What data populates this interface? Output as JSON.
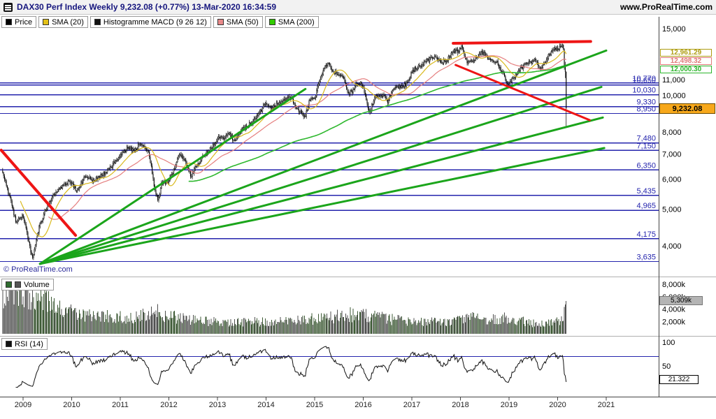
{
  "titlebar": {
    "title": "DAX30 Perf Index Weekly 9,232.08 (+0.77%) 13-Mar-2020 16:34:59",
    "website": "www.ProRealTime.com"
  },
  "legend": [
    {
      "label": "Price",
      "swatch": "#000000"
    },
    {
      "label": "SMA (20)",
      "swatch": "#e3c117"
    },
    {
      "label": "Histogramme MACD (9 26 12)",
      "swatch": "#111111"
    },
    {
      "label": "SMA (50)",
      "swatch": "#e88a8a"
    },
    {
      "label": "SMA (200)",
      "swatch": "#33cc00"
    }
  ],
  "panels": {
    "volume_label": "Volume",
    "volume_swatches": [
      "#2e6b2e",
      "#555555"
    ],
    "rsi_label": "RSI (14)",
    "rsi_swatch": "#111111"
  },
  "watermark": "© ProRealTime.com",
  "colors": {
    "level_line": "#2424ad",
    "up_trend": "#1ba51b",
    "down_trend": "#ee1515",
    "sma20": "#d9b91c",
    "sma50": "#e57f7f",
    "sma200": "#2eb82e",
    "vol_up": "#3d5a35",
    "vol_down": "#4f4f4f",
    "rsi_line": "#111111",
    "price_box_bg": "#f7a81b",
    "vol_box_bg": "#b4b4b4"
  },
  "chart_data": [
    {
      "type": "candlestick",
      "title": "DAX30 Perf Index Weekly",
      "y_scale": "log",
      "x_range": [
        2008.58,
        2021.35
      ],
      "x_tick_labels": [
        "2009",
        "2010",
        "2011",
        "2012",
        "2013",
        "2014",
        "2015",
        "2016",
        "2017",
        "2018",
        "2019",
        "2020",
        "2021"
      ],
      "y_axis_labels": [
        {
          "v": 15000,
          "label": "15,000"
        },
        {
          "v": 11000,
          "label": "11,000"
        },
        {
          "v": 10000,
          "label": "10,000"
        },
        {
          "v": 8000,
          "label": "8,000"
        },
        {
          "v": 7000,
          "label": "7,000"
        },
        {
          "v": 6000,
          "label": "6,000"
        },
        {
          "v": 5000,
          "label": "5,000"
        },
        {
          "v": 4000,
          "label": "4,000"
        }
      ],
      "horizontal_levels": [
        {
          "v": 10770,
          "label": "10,770"
        },
        {
          "v": 10650,
          "label": "10,650"
        },
        {
          "v": 10030,
          "label": "10,030"
        },
        {
          "v": 9330,
          "label": "9,330"
        },
        {
          "v": 8950,
          "label": "8,950"
        },
        {
          "v": 7480,
          "label": "7,480"
        },
        {
          "v": 7150,
          "label": "7,150"
        },
        {
          "v": 6350,
          "label": "6,350"
        },
        {
          "v": 5435,
          "label": "5,435"
        },
        {
          "v": 4965,
          "label": "4,965"
        },
        {
          "v": 4175,
          "label": "4,175"
        },
        {
          "v": 3635,
          "label": "3,635"
        }
      ],
      "last_price": 9232.08,
      "last_price_label": "9,232.08",
      "indicator_values": [
        {
          "name": "SMA (20)",
          "value": 12961.29,
          "label": "12,961.29",
          "color": "#ad9c10"
        },
        {
          "name": "SMA (50)",
          "value": 12498.32,
          "label": "12,498.32",
          "color": "#e07a7a"
        },
        {
          "name": "SMA (200)",
          "value": 12000.3,
          "label": "12,000.30",
          "color": "#2db52d"
        }
      ],
      "close_anchors": [
        [
          2008.58,
          6300
        ],
        [
          2008.72,
          5400
        ],
        [
          2008.85,
          4650
        ],
        [
          2009.0,
          4810
        ],
        [
          2009.08,
          4350
        ],
        [
          2009.19,
          3670
        ],
        [
          2009.3,
          4350
        ],
        [
          2009.45,
          4950
        ],
        [
          2009.6,
          5350
        ],
        [
          2009.75,
          5650
        ],
        [
          2009.95,
          5950
        ],
        [
          2010.1,
          5600
        ],
        [
          2010.3,
          6150
        ],
        [
          2010.42,
          5950
        ],
        [
          2010.55,
          6050
        ],
        [
          2010.7,
          6250
        ],
        [
          2010.9,
          6700
        ],
        [
          2011.05,
          7050
        ],
        [
          2011.17,
          7300
        ],
        [
          2011.3,
          7150
        ],
        [
          2011.4,
          7450
        ],
        [
          2011.5,
          7350
        ],
        [
          2011.58,
          7150
        ],
        [
          2011.65,
          6300
        ],
        [
          2011.72,
          5550
        ],
        [
          2011.78,
          5250
        ],
        [
          2011.85,
          5850
        ],
        [
          2011.95,
          5900
        ],
        [
          2012.05,
          6100
        ],
        [
          2012.2,
          6950
        ],
        [
          2012.3,
          6850
        ],
        [
          2012.45,
          6100
        ],
        [
          2012.6,
          6600
        ],
        [
          2012.75,
          7000
        ],
        [
          2012.9,
          7300
        ],
        [
          2013.0,
          7700
        ],
        [
          2013.12,
          7750
        ],
        [
          2013.25,
          7900
        ],
        [
          2013.35,
          7550
        ],
        [
          2013.5,
          8100
        ],
        [
          2013.65,
          8350
        ],
        [
          2013.8,
          8750
        ],
        [
          2014.0,
          9550
        ],
        [
          2014.1,
          9200
        ],
        [
          2014.25,
          9550
        ],
        [
          2014.35,
          9650
        ],
        [
          2014.5,
          9950
        ],
        [
          2014.62,
          9200
        ],
        [
          2014.72,
          9000
        ],
        [
          2014.79,
          8700
        ],
        [
          2014.9,
          9700
        ],
        [
          2015.0,
          9850
        ],
        [
          2015.1,
          10900
        ],
        [
          2015.2,
          11800
        ],
        [
          2015.28,
          12200
        ],
        [
          2015.38,
          11500
        ],
        [
          2015.48,
          11450
        ],
        [
          2015.58,
          11250
        ],
        [
          2015.68,
          10150
        ],
        [
          2015.78,
          10250
        ],
        [
          2015.88,
          10850
        ],
        [
          2015.98,
          10700
        ],
        [
          2016.08,
          9550
        ],
        [
          2016.13,
          9000
        ],
        [
          2016.22,
          9750
        ],
        [
          2016.35,
          10050
        ],
        [
          2016.45,
          9850
        ],
        [
          2016.5,
          9550
        ],
        [
          2016.6,
          10250
        ],
        [
          2016.75,
          10550
        ],
        [
          2016.9,
          10700
        ],
        [
          2017.0,
          11550
        ],
        [
          2017.15,
          11950
        ],
        [
          2017.3,
          12300
        ],
        [
          2017.45,
          12650
        ],
        [
          2017.55,
          12350
        ],
        [
          2017.7,
          12250
        ],
        [
          2017.85,
          13100
        ],
        [
          2017.95,
          13050
        ],
        [
          2018.03,
          13450
        ],
        [
          2018.1,
          12500
        ],
        [
          2018.16,
          12150
        ],
        [
          2018.25,
          12350
        ],
        [
          2018.35,
          12550
        ],
        [
          2018.45,
          13000
        ],
        [
          2018.55,
          12550
        ],
        [
          2018.65,
          12350
        ],
        [
          2018.75,
          12250
        ],
        [
          2018.85,
          11550
        ],
        [
          2018.93,
          11050
        ],
        [
          2018.99,
          10550
        ],
        [
          2019.07,
          11100
        ],
        [
          2019.2,
          11550
        ],
        [
          2019.33,
          12050
        ],
        [
          2019.45,
          12250
        ],
        [
          2019.55,
          12400
        ],
        [
          2019.62,
          11750
        ],
        [
          2019.7,
          11950
        ],
        [
          2019.8,
          12650
        ],
        [
          2019.9,
          13150
        ],
        [
          2020.0,
          13250
        ],
        [
          2020.06,
          13500
        ],
        [
          2020.11,
          13580
        ]
      ],
      "final_weeks": [
        [
          13580,
          13640,
          13150,
          13260
        ],
        [
          13260,
          13310,
          11690,
          11890
        ],
        [
          11890,
          12260,
          11100,
          11541
        ],
        [
          11541,
          11560,
          8255,
          9232.08
        ]
      ],
      "trendlines": [
        {
          "t1": 2009.35,
          "p1": 3585,
          "t2": 2014.81,
          "p2": 10390,
          "kind": "support",
          "w": 3
        },
        {
          "t1": 2009.35,
          "p1": 3585,
          "t2": 2021.0,
          "p2": 13124,
          "kind": "support",
          "w": 3
        },
        {
          "t1": 2009.35,
          "p1": 3585,
          "t2": 2020.9,
          "p2": 10520,
          "kind": "support",
          "w": 3
        },
        {
          "t1": 2009.35,
          "p1": 3585,
          "t2": 2020.93,
          "p2": 8733,
          "kind": "support",
          "w": 3
        },
        {
          "t1": 2009.35,
          "p1": 3585,
          "t2": 2020.96,
          "p2": 7253,
          "kind": "support",
          "w": 3
        },
        {
          "t1": 2008.55,
          "p1": 7160,
          "t2": 2010.08,
          "p2": 4263,
          "kind": "resistance",
          "w": 4
        },
        {
          "t1": 2017.85,
          "p1": 13719,
          "t2": 2020.68,
          "p2": 13870,
          "kind": "resistance",
          "w": 4
        },
        {
          "t1": 2017.9,
          "p1": 12023,
          "t2": 2020.66,
          "p2": 8596,
          "kind": "resistance",
          "w": 3
        }
      ]
    },
    {
      "type": "bar",
      "title": "Volume",
      "y_ticks": [
        {
          "v": 8000,
          "label": "8,000k"
        },
        {
          "v": 6000,
          "label": "6,000k"
        },
        {
          "v": 4000,
          "label": "4,000k"
        },
        {
          "v": 2000,
          "label": "2,000k"
        }
      ],
      "last_value_k": 5309,
      "last_value_label": "5,309k",
      "anchors_k": [
        [
          2008.58,
          6500
        ],
        [
          2009.0,
          6800
        ],
        [
          2009.25,
          6000
        ],
        [
          2009.6,
          4600
        ],
        [
          2010.0,
          3400
        ],
        [
          2010.5,
          2900
        ],
        [
          2011.3,
          2500
        ],
        [
          2011.65,
          4000
        ],
        [
          2011.9,
          2900
        ],
        [
          2012.5,
          2200
        ],
        [
          2013.2,
          1900
        ],
        [
          2014.0,
          1950
        ],
        [
          2014.8,
          2300
        ],
        [
          2015.3,
          2600
        ],
        [
          2015.7,
          3100
        ],
        [
          2016.1,
          2900
        ],
        [
          2016.5,
          2400
        ],
        [
          2017.0,
          1900
        ],
        [
          2017.8,
          1850
        ],
        [
          2018.1,
          2800
        ],
        [
          2018.5,
          2100
        ],
        [
          2018.95,
          2500
        ],
        [
          2019.5,
          1700
        ],
        [
          2019.9,
          1800
        ],
        [
          2020.08,
          2200
        ],
        [
          2020.15,
          3300
        ],
        [
          2020.19,
          5309
        ]
      ]
    },
    {
      "type": "line",
      "title": "RSI (14)",
      "period": 14,
      "overbought_line": 70,
      "y_ticks": [
        {
          "v": 100,
          "label": "100"
        },
        {
          "v": 50,
          "label": "50"
        }
      ],
      "last_value": 21.322,
      "last_value_label": "21.322"
    }
  ]
}
